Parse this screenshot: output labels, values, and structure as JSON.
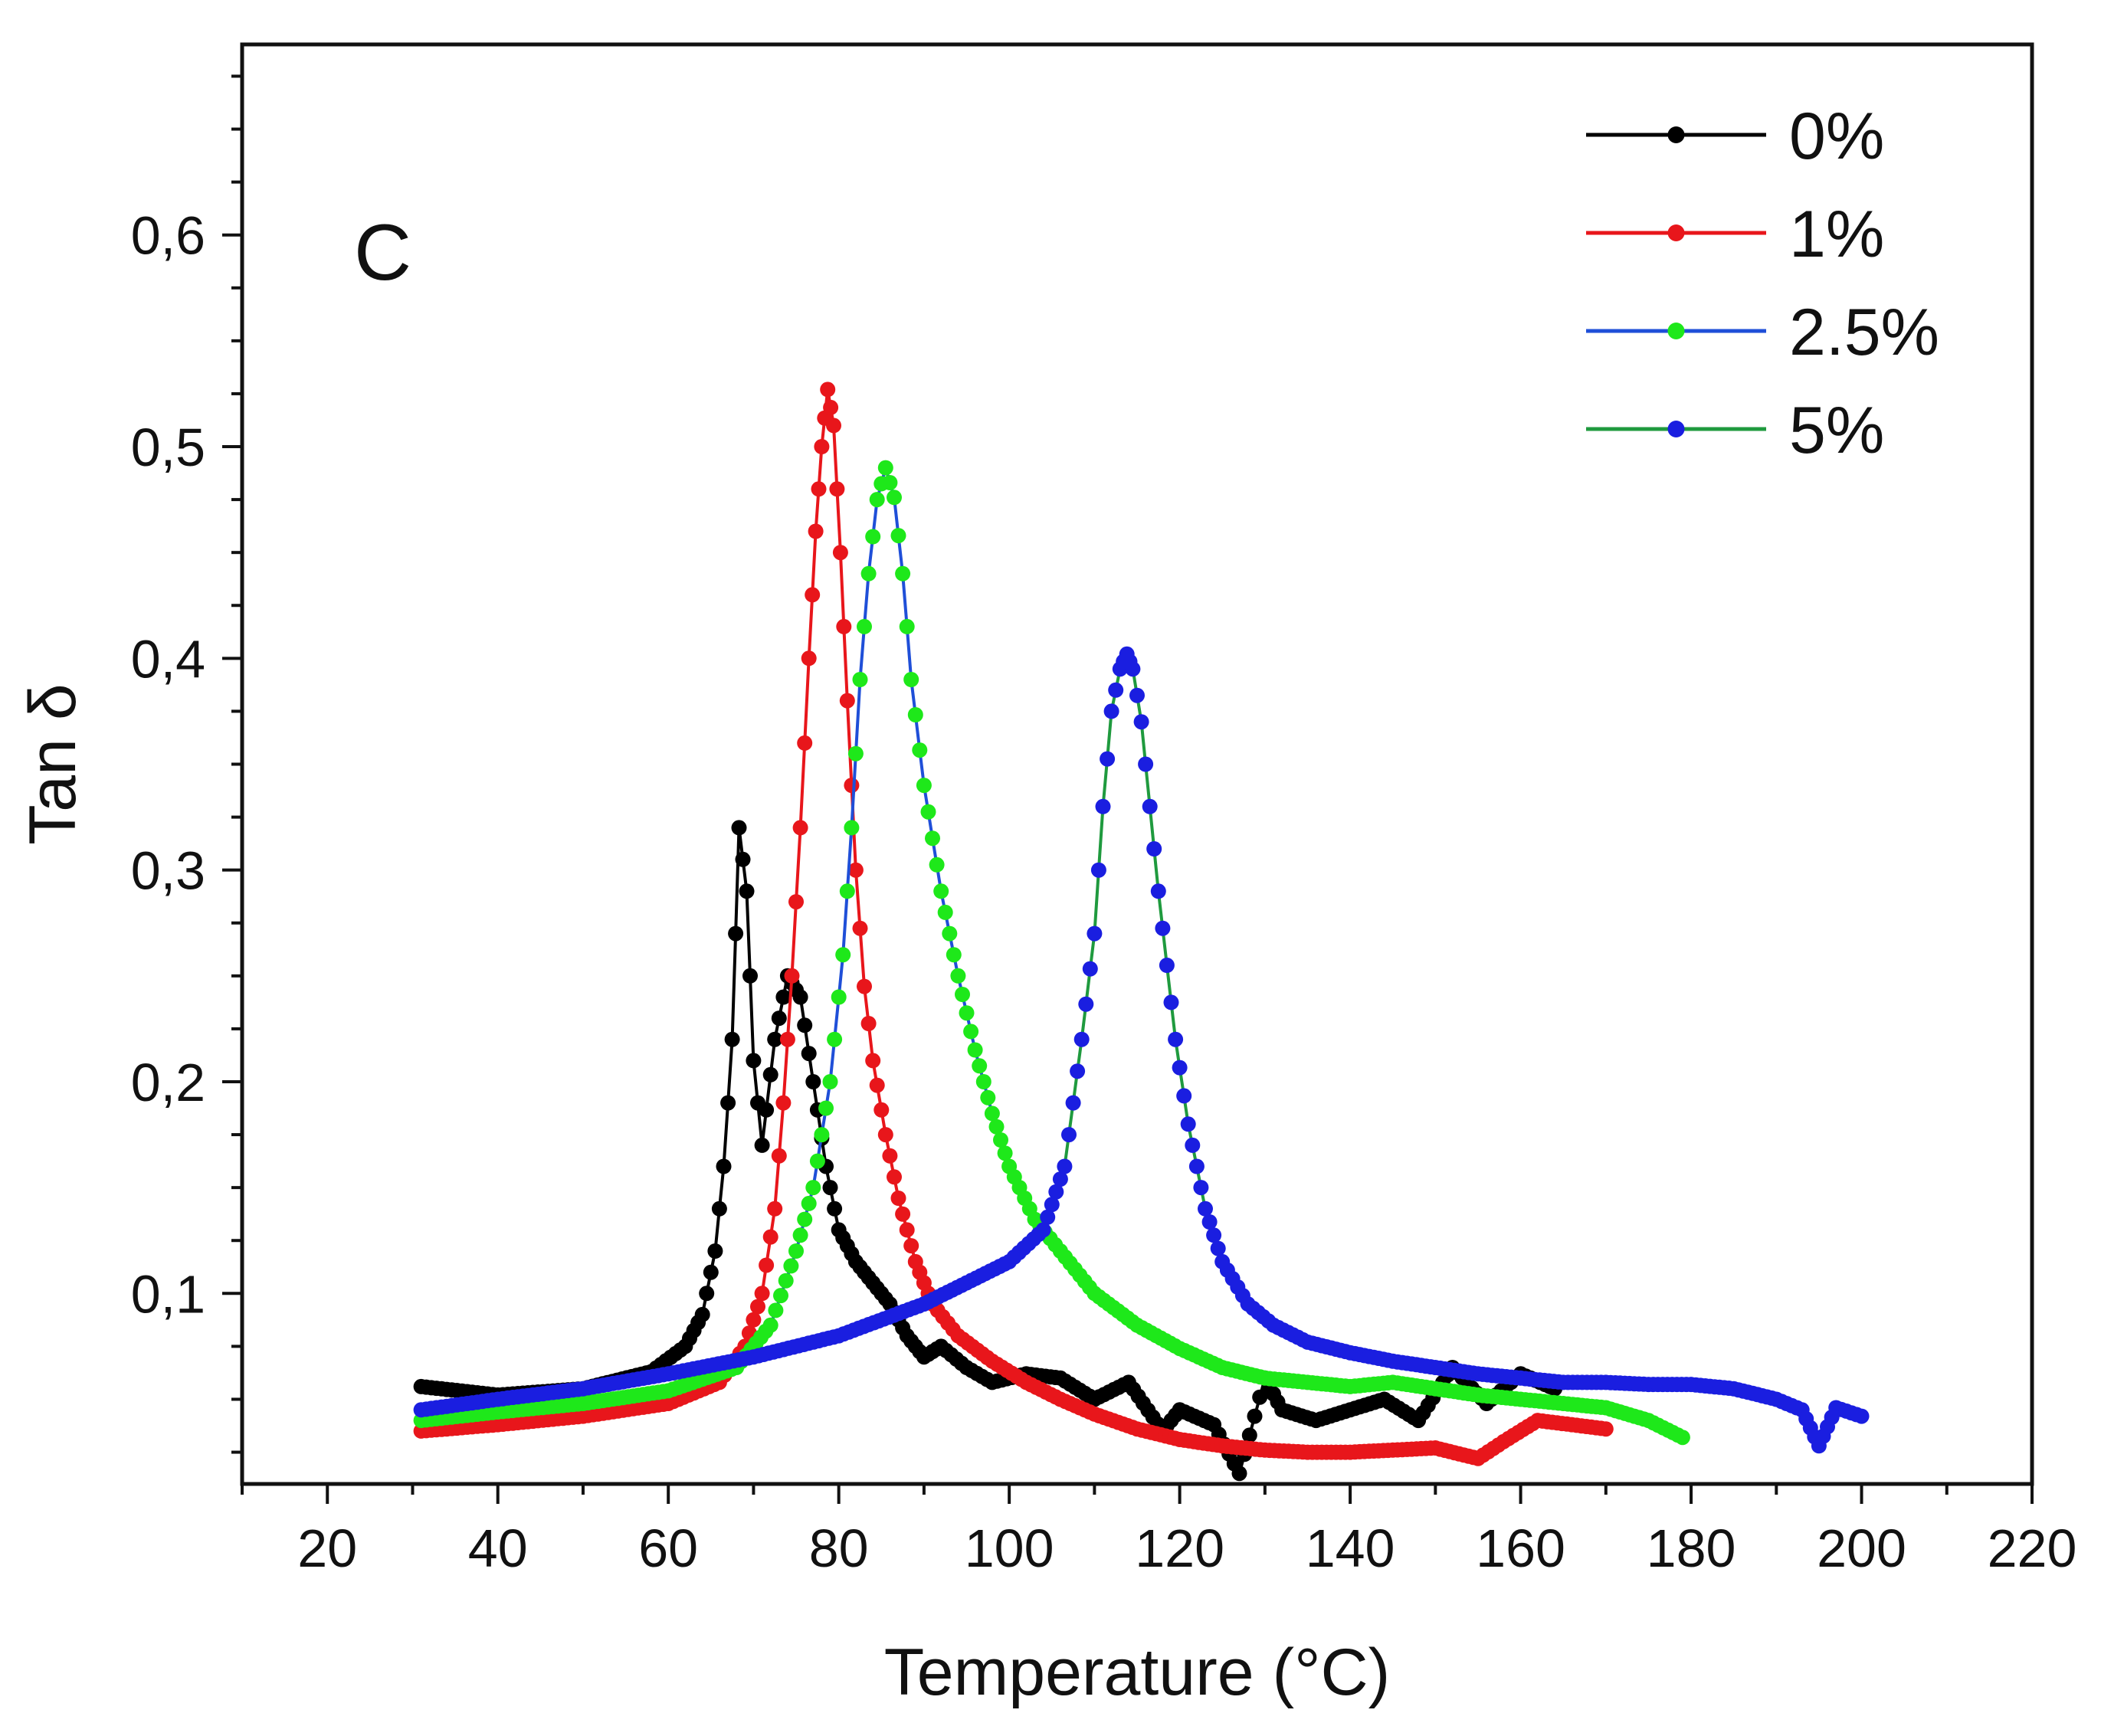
{
  "chart_data": {
    "type": "scatter",
    "panel_label": "C",
    "xlabel": "Temperature (°C)",
    "ylabel": "Tan δ",
    "xlim": [
      10,
      220
    ],
    "ylim": [
      0.01,
      0.69
    ],
    "x_ticks": [
      20,
      40,
      60,
      80,
      100,
      120,
      140,
      160,
      180,
      200,
      220
    ],
    "x_tick_labels": [
      "20",
      "40",
      "60",
      "80",
      "100",
      "120",
      "140",
      "160",
      "180",
      "200",
      "220"
    ],
    "y_ticks": [
      0.1,
      0.2,
      0.3,
      0.4,
      0.5,
      0.6
    ],
    "y_tick_labels": [
      "0,1",
      "0,2",
      "0,3",
      "0,4",
      "0,5",
      "0,6"
    ],
    "legend_position": "top-right",
    "legend": [
      {
        "label": "0%",
        "line_color": "#000000",
        "marker_color": "#000000"
      },
      {
        "label": "1%",
        "line_color": "#e8161b",
        "marker_color": "#e8161b"
      },
      {
        "label": "2.5%",
        "line_color": "#1f4fd8",
        "marker_color": "#1ee81a"
      },
      {
        "label": "5%",
        "line_color": "#1f9a3e",
        "marker_color": "#1a1ee0"
      }
    ],
    "series": [
      {
        "name": "0%",
        "line_color": "#000000",
        "marker_color": "#000000",
        "x": [
          31,
          40,
          50,
          58,
          62,
          64,
          65.5,
          66.5,
          67.5,
          68.3,
          69.2,
          70,
          71,
          72.5,
          74,
          75.5,
          77,
          78.5,
          80,
          82,
          84,
          86,
          88,
          90,
          92,
          95,
          98,
          102,
          106,
          110,
          114,
          118,
          120,
          124,
          127,
          130,
          132,
          136,
          140,
          144,
          148,
          152,
          156,
          160,
          164
        ],
        "y": [
          0.056,
          0.052,
          0.055,
          0.063,
          0.075,
          0.09,
          0.12,
          0.16,
          0.22,
          0.32,
          0.29,
          0.21,
          0.17,
          0.22,
          0.25,
          0.24,
          0.2,
          0.16,
          0.13,
          0.115,
          0.105,
          0.095,
          0.08,
          0.07,
          0.075,
          0.065,
          0.058,
          0.062,
          0.06,
          0.05,
          0.058,
          0.035,
          0.045,
          0.038,
          0.015,
          0.06,
          0.045,
          0.04,
          0.045,
          0.05,
          0.04,
          0.065,
          0.048,
          0.062,
          0.055
        ]
      },
      {
        "name": "1%",
        "line_color": "#e8161b",
        "marker_color": "#e8161b",
        "x": [
          31,
          40,
          50,
          60,
          66,
          69,
          71,
          72.5,
          73.5,
          74.5,
          75.5,
          76.5,
          77.3,
          78,
          78.7,
          79.4,
          80.2,
          81,
          82,
          83,
          84,
          85.5,
          87,
          89,
          91,
          94,
          98,
          102,
          106,
          110,
          115,
          120,
          125,
          130,
          135,
          140,
          145,
          150,
          155,
          158,
          162,
          166,
          170
        ],
        "y": [
          0.035,
          0.038,
          0.042,
          0.048,
          0.058,
          0.075,
          0.1,
          0.14,
          0.19,
          0.25,
          0.32,
          0.4,
          0.46,
          0.5,
          0.527,
          0.51,
          0.45,
          0.38,
          0.3,
          0.245,
          0.21,
          0.175,
          0.145,
          0.115,
          0.095,
          0.08,
          0.068,
          0.058,
          0.05,
          0.043,
          0.036,
          0.031,
          0.028,
          0.026,
          0.025,
          0.025,
          0.026,
          0.027,
          0.022,
          0.03,
          0.04,
          0.038,
          0.036
        ]
      },
      {
        "name": "2.5%",
        "line_color": "#1f4fd8",
        "marker_color": "#1ee81a",
        "x": [
          31,
          40,
          50,
          60,
          68,
          72,
          75,
          77,
          79,
          80.5,
          81.5,
          82.5,
          83.5,
          84.5,
          85.5,
          86.5,
          87.5,
          88.5,
          90,
          92,
          94,
          96,
          98,
          100,
          103,
          106,
          110,
          115,
          120,
          125,
          130,
          135,
          140,
          145,
          150,
          155,
          160,
          165,
          170,
          175,
          179
        ],
        "y": [
          0.04,
          0.044,
          0.048,
          0.054,
          0.065,
          0.085,
          0.12,
          0.15,
          0.2,
          0.26,
          0.32,
          0.39,
          0.44,
          0.475,
          0.49,
          0.476,
          0.44,
          0.39,
          0.34,
          0.29,
          0.25,
          0.215,
          0.185,
          0.16,
          0.135,
          0.12,
          0.1,
          0.085,
          0.074,
          0.065,
          0.06,
          0.058,
          0.056,
          0.058,
          0.055,
          0.052,
          0.05,
          0.048,
          0.046,
          0.04,
          0.032
        ]
      },
      {
        "name": "5%",
        "line_color": "#1f9a3e",
        "marker_color": "#1a1ee0",
        "x": [
          31,
          40,
          50,
          60,
          70,
          80,
          90,
          95,
          100,
          104,
          106.5,
          108.5,
          110,
          111,
          112,
          113,
          113.8,
          114.5,
          115.5,
          116.5,
          117.5,
          118.5,
          119.5,
          121,
          123,
          125,
          128,
          131,
          135,
          140,
          145,
          150,
          155,
          160,
          165,
          170,
          175,
          180,
          185,
          190,
          193,
          195,
          197,
          200
        ],
        "y": [
          0.045,
          0.05,
          0.055,
          0.062,
          0.07,
          0.08,
          0.095,
          0.105,
          0.115,
          0.13,
          0.16,
          0.22,
          0.27,
          0.33,
          0.375,
          0.395,
          0.402,
          0.395,
          0.37,
          0.33,
          0.29,
          0.255,
          0.22,
          0.18,
          0.14,
          0.115,
          0.095,
          0.085,
          0.077,
          0.072,
          0.068,
          0.065,
          0.062,
          0.06,
          0.058,
          0.058,
          0.057,
          0.057,
          0.055,
          0.05,
          0.045,
          0.028,
          0.046,
          0.042
        ]
      }
    ]
  }
}
